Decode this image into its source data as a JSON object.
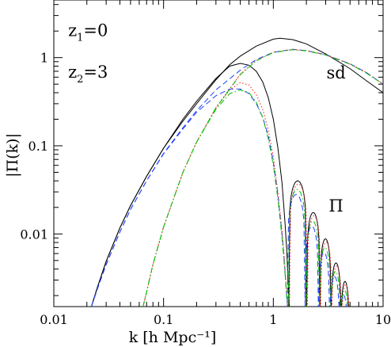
{
  "chart_data": {
    "type": "line",
    "title": "",
    "xlabel": "k [h Mpc⁻¹]",
    "ylabel": "|Π(k)|",
    "xscale": "log",
    "yscale": "log",
    "xlim": [
      0.01,
      10
    ],
    "ylim": [
      0.0015,
      4.5
    ],
    "grid": false,
    "legend": "none",
    "xticks": [
      {
        "value": 0.01,
        "label": "0.01"
      },
      {
        "value": 0.1,
        "label": "0.1"
      },
      {
        "value": 1,
        "label": "1"
      },
      {
        "value": 10,
        "label": "10"
      }
    ],
    "yticks": [
      {
        "value": 0.01,
        "label": "0.01"
      },
      {
        "value": 0.1,
        "label": "0.1"
      },
      {
        "value": 1,
        "label": "1"
      }
    ],
    "annotations": [
      {
        "text": "z₁=0",
        "main": "z",
        "sub": "1",
        "rest": "=0",
        "x": 0.0135,
        "y": 1.75
      },
      {
        "text": "z₂=3",
        "main": "z",
        "sub": "2",
        "rest": "=3",
        "x": 0.0135,
        "y": 0.59
      },
      {
        "text": "sd",
        "x": 3.05,
        "y": 0.58
      },
      {
        "text": "Π",
        "x": 3.2,
        "y": 0.018
      }
    ],
    "series": [
      {
        "color": "#000000",
        "style": "solid",
        "x": [
          0.022,
          0.025,
          0.03,
          0.04,
          0.05,
          0.07,
          0.1,
          0.15,
          0.2,
          0.3,
          0.4,
          0.5,
          0.7,
          1.0,
          1.15,
          1.5,
          2.0,
          3.0,
          5.0,
          7.0,
          10.0
        ],
        "y": [
          0.0015,
          0.0025,
          0.0049,
          0.0117,
          0.021,
          0.045,
          0.094,
          0.19,
          0.3,
          0.56,
          0.83,
          1.04,
          1.35,
          1.62,
          1.66,
          1.6,
          1.43,
          1.1,
          0.75,
          0.55,
          0.4
        ]
      },
      {
        "color": "#000000",
        "style": "solid",
        "x": [
          0.022,
          0.025,
          0.03,
          0.04,
          0.05,
          0.07,
          0.1,
          0.15,
          0.2,
          0.3,
          0.4,
          0.5,
          0.6,
          0.7,
          0.8,
          0.9,
          1.0,
          1.1,
          1.2,
          1.28,
          1.33,
          1.36,
          1.38,
          1.4
        ],
        "y": [
          0.0015,
          0.0025,
          0.0049,
          0.0117,
          0.021,
          0.045,
          0.094,
          0.2,
          0.32,
          0.58,
          0.8,
          0.86,
          0.82,
          0.7,
          0.53,
          0.35,
          0.2,
          0.095,
          0.038,
          0.013,
          0.006,
          0.003,
          0.002,
          0.0015
        ]
      },
      {
        "color": "#2040ff",
        "style": "dashed",
        "x": [
          0.022,
          0.025,
          0.03,
          0.04,
          0.05,
          0.07,
          0.1,
          0.15,
          0.2,
          0.3,
          0.5,
          0.7,
          1.0,
          1.5,
          2.0,
          3.0,
          5.0,
          7.0,
          10.0
        ],
        "y": [
          0.0015,
          0.0024,
          0.0045,
          0.0105,
          0.019,
          0.04,
          0.082,
          0.16,
          0.25,
          0.43,
          0.72,
          0.95,
          1.15,
          1.24,
          1.2,
          1.08,
          0.85,
          0.68,
          0.5
        ]
      },
      {
        "color": "#2040ff",
        "style": "dashed",
        "x": [
          0.022,
          0.025,
          0.03,
          0.04,
          0.05,
          0.07,
          0.1,
          0.15,
          0.2,
          0.3,
          0.4,
          0.5,
          0.6,
          0.7,
          0.8,
          0.9,
          1.0,
          1.1,
          1.2,
          1.25,
          1.3,
          1.33,
          1.35
        ],
        "y": [
          0.0015,
          0.0024,
          0.0045,
          0.0105,
          0.019,
          0.04,
          0.081,
          0.155,
          0.24,
          0.37,
          0.44,
          0.44,
          0.39,
          0.3,
          0.21,
          0.13,
          0.065,
          0.028,
          0.01,
          0.0055,
          0.0028,
          0.0018,
          0.0015
        ]
      },
      {
        "color": "#ff2020",
        "style": "dotted",
        "x": [
          0.065,
          0.07,
          0.08,
          0.1,
          0.15,
          0.2,
          0.3,
          0.5,
          0.7,
          1.0,
          1.5,
          2.0,
          3.0,
          5.0,
          7.0,
          10.0
        ],
        "y": [
          0.0015,
          0.0022,
          0.0045,
          0.012,
          0.05,
          0.11,
          0.27,
          0.65,
          0.93,
          1.15,
          1.24,
          1.2,
          1.08,
          0.85,
          0.68,
          0.5
        ]
      },
      {
        "color": "#ff2020",
        "style": "dotted",
        "x": [
          0.065,
          0.07,
          0.08,
          0.1,
          0.15,
          0.2,
          0.3,
          0.4,
          0.5,
          0.6,
          0.7,
          0.8,
          0.9,
          1.0,
          1.1,
          1.2,
          1.25,
          1.3,
          1.33,
          1.35
        ],
        "y": [
          0.0015,
          0.0022,
          0.0045,
          0.012,
          0.05,
          0.11,
          0.27,
          0.43,
          0.52,
          0.49,
          0.38,
          0.26,
          0.15,
          0.075,
          0.03,
          0.011,
          0.006,
          0.003,
          0.0019,
          0.0015
        ]
      },
      {
        "color": "#00c000",
        "style": "dashdot",
        "x": [
          0.065,
          0.07,
          0.08,
          0.1,
          0.15,
          0.2,
          0.3,
          0.5,
          0.7,
          1.0,
          1.5,
          2.0,
          3.0,
          5.0,
          7.0,
          10.0
        ],
        "y": [
          0.0015,
          0.0022,
          0.0045,
          0.012,
          0.05,
          0.11,
          0.27,
          0.64,
          0.92,
          1.14,
          1.23,
          1.19,
          1.07,
          0.84,
          0.67,
          0.5
        ]
      },
      {
        "color": "#00c000",
        "style": "dashdot",
        "x": [
          0.065,
          0.07,
          0.08,
          0.1,
          0.15,
          0.2,
          0.3,
          0.4,
          0.5,
          0.6,
          0.7,
          0.8,
          0.9,
          1.0,
          1.1,
          1.2,
          1.25,
          1.3,
          1.33,
          1.35
        ],
        "y": [
          0.0015,
          0.0022,
          0.0045,
          0.012,
          0.05,
          0.11,
          0.26,
          0.39,
          0.43,
          0.4,
          0.31,
          0.21,
          0.12,
          0.06,
          0.025,
          0.009,
          0.005,
          0.0027,
          0.0018,
          0.0015
        ]
      }
    ],
    "oscillation_peaks": {
      "x": [
        1.72,
        2.35,
        3.0,
        3.75,
        4.55
      ],
      "y": [
        0.04,
        0.0175,
        0.0088,
        0.0047,
        0.0029
      ],
      "x_start": 1.38,
      "x_end": 4.9
    }
  }
}
